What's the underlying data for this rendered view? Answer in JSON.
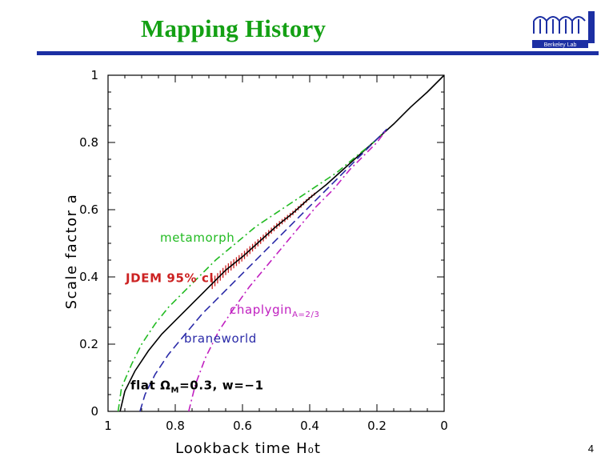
{
  "slide": {
    "title": "Mapping History",
    "page_number": "4",
    "logo_text": "Berkeley Lab"
  },
  "chart_data": {
    "type": "line",
    "title": "",
    "xlabel": "Lookback time H₀t",
    "ylabel": "Scale factor a",
    "xlim": [
      1,
      0
    ],
    "ylim": [
      0,
      1
    ],
    "x_reversed": true,
    "x_ticks": [
      "1",
      "0.8",
      "0.6",
      "0.4",
      "0.2",
      "0"
    ],
    "y_ticks": [
      "0",
      "0.2",
      "0.4",
      "0.6",
      "0.8",
      "1"
    ],
    "grid": false,
    "series": [
      {
        "name": "flat ΩM=0.3, w=−1",
        "label_main": "flat  Ω",
        "label_sub": "M",
        "label_tail": "=0.3,  w=−1",
        "color": "#000000",
        "style": "solid",
        "x": [
          0.964,
          0.95,
          0.92,
          0.88,
          0.84,
          0.8,
          0.75,
          0.7,
          0.65,
          0.6,
          0.55,
          0.5,
          0.45,
          0.4,
          0.35,
          0.3,
          0.25,
          0.2,
          0.15,
          0.1,
          0.05,
          0.0
        ],
        "y": [
          0.0,
          0.06,
          0.12,
          0.18,
          0.23,
          0.27,
          0.32,
          0.37,
          0.42,
          0.46,
          0.505,
          0.55,
          0.59,
          0.635,
          0.675,
          0.72,
          0.765,
          0.81,
          0.855,
          0.905,
          0.95,
          1.0
        ]
      },
      {
        "name": "metamorph",
        "color": "#22bb22",
        "style": "dash-dot",
        "x": [
          0.97,
          0.96,
          0.93,
          0.9,
          0.86,
          0.82,
          0.78,
          0.73,
          0.68,
          0.62,
          0.56,
          0.5,
          0.44,
          0.38,
          0.32,
          0.26,
          0.21,
          0.18
        ],
        "y": [
          0.0,
          0.07,
          0.14,
          0.2,
          0.26,
          0.31,
          0.35,
          0.4,
          0.45,
          0.5,
          0.55,
          0.59,
          0.63,
          0.67,
          0.71,
          0.76,
          0.8,
          0.83
        ]
      },
      {
        "name": "braneworld",
        "color": "#2a2aa8",
        "style": "dashed",
        "x": [
          0.905,
          0.89,
          0.86,
          0.82,
          0.77,
          0.72,
          0.67,
          0.62,
          0.57,
          0.52,
          0.47,
          0.42,
          0.37,
          0.32,
          0.27,
          0.22,
          0.17
        ],
        "y": [
          0.0,
          0.05,
          0.11,
          0.17,
          0.23,
          0.29,
          0.34,
          0.39,
          0.44,
          0.49,
          0.54,
          0.59,
          0.64,
          0.69,
          0.74,
          0.79,
          0.84
        ]
      },
      {
        "name": "chaplygin A=2/3",
        "label_main": "chaplygin",
        "label_sub": "A=2/3",
        "color": "#c020c0",
        "style": "dash-dot",
        "x": [
          0.76,
          0.74,
          0.71,
          0.67,
          0.63,
          0.58,
          0.53,
          0.48,
          0.43,
          0.38,
          0.33,
          0.28,
          0.24,
          0.2,
          0.17
        ],
        "y": [
          0.0,
          0.08,
          0.16,
          0.24,
          0.3,
          0.37,
          0.43,
          0.49,
          0.55,
          0.61,
          0.66,
          0.72,
          0.76,
          0.8,
          0.84
        ]
      }
    ],
    "band": {
      "name": "JDEM 95% cl",
      "color": "#cc2222",
      "x_range": [
        0.69,
        0.38
      ]
    }
  }
}
